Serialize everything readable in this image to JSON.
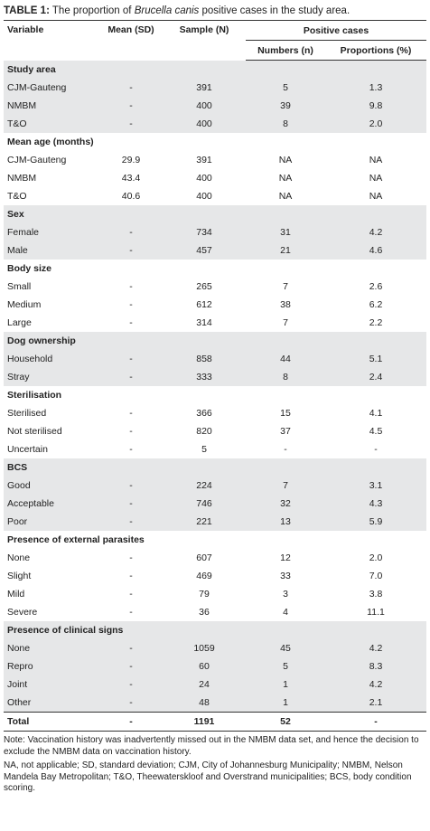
{
  "title": {
    "label": "TABLE 1:",
    "before": "The proportion of",
    "italic": "Brucella canis",
    "after": "positive cases in the study area."
  },
  "table": {
    "columns": [
      "Variable",
      "Mean (SD)",
      "Sample (N)",
      "Numbers (n)",
      "Proportions (%)"
    ],
    "group_header": "Positive cases",
    "sections": [
      {
        "title": "Study area",
        "rows": [
          [
            "CJM-Gauteng",
            "-",
            "391",
            "5",
            "1.3"
          ],
          [
            "NMBM",
            "-",
            "400",
            "39",
            "9.8"
          ],
          [
            "T&O",
            "-",
            "400",
            "8",
            "2.0"
          ]
        ]
      },
      {
        "title": "Mean age (months)",
        "rows": [
          [
            "CJM-Gauteng",
            "29.9",
            "391",
            "NA",
            "NA"
          ],
          [
            "NMBM",
            "43.4",
            "400",
            "NA",
            "NA"
          ],
          [
            "T&O",
            "40.6",
            "400",
            "NA",
            "NA"
          ]
        ]
      },
      {
        "title": "Sex",
        "rows": [
          [
            "Female",
            "-",
            "734",
            "31",
            "4.2"
          ],
          [
            "Male",
            "-",
            "457",
            "21",
            "4.6"
          ]
        ]
      },
      {
        "title": "Body size",
        "rows": [
          [
            "Small",
            "-",
            "265",
            "7",
            "2.6"
          ],
          [
            "Medium",
            "-",
            "612",
            "38",
            "6.2"
          ],
          [
            "Large",
            "-",
            "314",
            "7",
            "2.2"
          ]
        ]
      },
      {
        "title": "Dog ownership",
        "rows": [
          [
            "Household",
            "-",
            "858",
            "44",
            "5.1"
          ],
          [
            "Stray",
            "-",
            "333",
            "8",
            "2.4"
          ]
        ]
      },
      {
        "title": "Sterilisation",
        "rows": [
          [
            "Sterilised",
            "-",
            "366",
            "15",
            "4.1"
          ],
          [
            "Not sterilised",
            "-",
            "820",
            "37",
            "4.5"
          ],
          [
            "Uncertain",
            "-",
            "5",
            "-",
            "-"
          ]
        ]
      },
      {
        "title": "BCS",
        "rows": [
          [
            "Good",
            "-",
            "224",
            "7",
            "3.1"
          ],
          [
            "Acceptable",
            "-",
            "746",
            "32",
            "4.3"
          ],
          [
            "Poor",
            "-",
            "221",
            "13",
            "5.9"
          ]
        ]
      },
      {
        "title": "Presence of external parasites",
        "rows": [
          [
            "None",
            "-",
            "607",
            "12",
            "2.0"
          ],
          [
            "Slight",
            "-",
            "469",
            "33",
            "7.0"
          ],
          [
            "Mild",
            "-",
            "79",
            "3",
            "3.8"
          ],
          [
            "Severe",
            "-",
            "36",
            "4",
            "11.1"
          ]
        ]
      },
      {
        "title": "Presence of clinical signs",
        "rows": [
          [
            "None",
            "-",
            "1059",
            "45",
            "4.2"
          ],
          [
            "Repro",
            "-",
            "60",
            "5",
            "8.3"
          ],
          [
            "Joint",
            "-",
            "24",
            "1",
            "4.2"
          ],
          [
            "Other",
            "-",
            "48",
            "1",
            "2.1"
          ]
        ]
      }
    ],
    "total": [
      "Total",
      "-",
      "1191",
      "52",
      "-"
    ]
  },
  "notes": [
    "Note: Vaccination history was inadvertently missed out in the NMBM data set, and hence the decision to exclude the NMBM data on vaccination history.",
    "NA, not applicable; SD, standard deviation; CJM, City of Johannesburg Municipality; NMBM, Nelson Mandela Bay Metropolitan; T&O, Theewaterskloof and Overstrand municipalities; BCS, body condition scoring."
  ]
}
